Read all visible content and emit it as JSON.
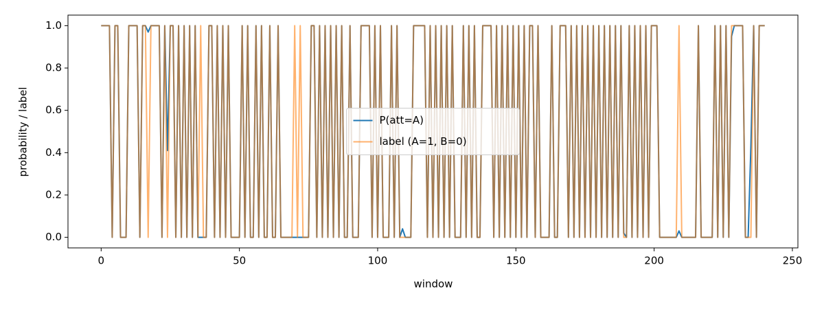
{
  "chart_data": {
    "type": "line",
    "xlabel": "window",
    "ylabel": "probability / label",
    "x": [
      0,
      1,
      2,
      3,
      4,
      5,
      6,
      7,
      8,
      9,
      10,
      11,
      12,
      13,
      14,
      15,
      16,
      17,
      18,
      19,
      20,
      21,
      22,
      23,
      24,
      25,
      26,
      27,
      28,
      29,
      30,
      31,
      32,
      33,
      34,
      35,
      36,
      37,
      38,
      39,
      40,
      41,
      42,
      43,
      44,
      45,
      46,
      47,
      48,
      49,
      50,
      51,
      52,
      53,
      54,
      55,
      56,
      57,
      58,
      59,
      60,
      61,
      62,
      63,
      64,
      65,
      66,
      67,
      68,
      69,
      70,
      71,
      72,
      73,
      74,
      75,
      76,
      77,
      78,
      79,
      80,
      81,
      82,
      83,
      84,
      85,
      86,
      87,
      88,
      89,
      90,
      91,
      92,
      93,
      94,
      95,
      96,
      97,
      98,
      99,
      100,
      101,
      102,
      103,
      104,
      105,
      106,
      107,
      108,
      109,
      110,
      111,
      112,
      113,
      114,
      115,
      116,
      117,
      118,
      119,
      120,
      121,
      122,
      123,
      124,
      125,
      126,
      127,
      128,
      129,
      130,
      131,
      132,
      133,
      134,
      135,
      136,
      137,
      138,
      139,
      140,
      141,
      142,
      143,
      144,
      145,
      146,
      147,
      148,
      149,
      150,
      151,
      152,
      153,
      154,
      155,
      156,
      157,
      158,
      159,
      160,
      161,
      162,
      163,
      164,
      165,
      166,
      167,
      168,
      169,
      170,
      171,
      172,
      173,
      174,
      175,
      176,
      177,
      178,
      179,
      180,
      181,
      182,
      183,
      184,
      185,
      186,
      187,
      188,
      189,
      190,
      191,
      192,
      193,
      194,
      195,
      196,
      197,
      198,
      199,
      200,
      201,
      202,
      203,
      204,
      205,
      206,
      207,
      208,
      209,
      210,
      211,
      212,
      213,
      214,
      215,
      216,
      217,
      218,
      219,
      220,
      221,
      222,
      223,
      224,
      225,
      226,
      227,
      228,
      229,
      230,
      231,
      232,
      233,
      234,
      235,
      236,
      237,
      238,
      239,
      240
    ],
    "series": [
      {
        "name": "P(att=A)",
        "color": "#1f77b4",
        "opacity": 1,
        "values": [
          1,
          1,
          1,
          1,
          0,
          1,
          1,
          0,
          0,
          0,
          1,
          1,
          1,
          1,
          0,
          1,
          1,
          0.97,
          1,
          1,
          1,
          1,
          0,
          1,
          0.41,
          1,
          1,
          0,
          1,
          0,
          1,
          0,
          1,
          0,
          1,
          0,
          0,
          0,
          0,
          1,
          1,
          0,
          1,
          0,
          1,
          0,
          1,
          0,
          0,
          0,
          0,
          1,
          0,
          1,
          0,
          0,
          1,
          0,
          1,
          0,
          0,
          1,
          0,
          0,
          1,
          0,
          0,
          0,
          0,
          0,
          0,
          0,
          0,
          0,
          0,
          0,
          1,
          1,
          0,
          1,
          0,
          1,
          0,
          1,
          0,
          1,
          0,
          1,
          0,
          0,
          1,
          0,
          0,
          0,
          1,
          1,
          1,
          1,
          0,
          1,
          0,
          1,
          0,
          0,
          0,
          1,
          0,
          1,
          0,
          0.04,
          0,
          0,
          0,
          1,
          1,
          1,
          1,
          1,
          0,
          1,
          0,
          1,
          0,
          1,
          0,
          1,
          0,
          1,
          0,
          0,
          0,
          1,
          0,
          1,
          0,
          1,
          0,
          0,
          1,
          1,
          1,
          1,
          0,
          1,
          0,
          1,
          0,
          1,
          0,
          1,
          0,
          1,
          0,
          1,
          0,
          1,
          1,
          0,
          1,
          0,
          0,
          0,
          0,
          1,
          0,
          0,
          1,
          1,
          1,
          0,
          1,
          0,
          1,
          0,
          1,
          0,
          1,
          0,
          1,
          0,
          1,
          0,
          1,
          0,
          1,
          0,
          1,
          0,
          1,
          0.02,
          0,
          1,
          0,
          1,
          0,
          1,
          0,
          1,
          0,
          1,
          1,
          1,
          0,
          0,
          0,
          0,
          0,
          0,
          0,
          0.03,
          0,
          0,
          0,
          0,
          0,
          0,
          1,
          0,
          0,
          0,
          0,
          0,
          1,
          0,
          1,
          0,
          1,
          0,
          0.95,
          1,
          1,
          1,
          1,
          0,
          0,
          0.43,
          1,
          0,
          1,
          1,
          1
        ]
      },
      {
        "name": "label (A=1, B=0)",
        "color": "#ff7f0e",
        "opacity": 0.6,
        "values": [
          1,
          1,
          1,
          1,
          0,
          1,
          1,
          0,
          0,
          0,
          1,
          1,
          1,
          1,
          0,
          1,
          1,
          0,
          1,
          1,
          1,
          1,
          0,
          1,
          0,
          1,
          1,
          0,
          1,
          0,
          1,
          0,
          1,
          0,
          1,
          0,
          1,
          0,
          0,
          1,
          1,
          0,
          1,
          0,
          1,
          0,
          1,
          0,
          0,
          0,
          0,
          1,
          0,
          1,
          0,
          0,
          1,
          0,
          1,
          0,
          0,
          1,
          0,
          0,
          1,
          0,
          0,
          0,
          0,
          0,
          1,
          0,
          1,
          0,
          0,
          0,
          1,
          1,
          0,
          1,
          0,
          1,
          0,
          1,
          0,
          1,
          0,
          1,
          0,
          0,
          1,
          0,
          0,
          0,
          1,
          1,
          1,
          1,
          0,
          1,
          0,
          1,
          0,
          0,
          0,
          1,
          0,
          1,
          0,
          0,
          0,
          0,
          0,
          1,
          1,
          1,
          1,
          1,
          0,
          1,
          0,
          1,
          0,
          1,
          0,
          1,
          0,
          1,
          0,
          0,
          0,
          1,
          0,
          1,
          0,
          1,
          0,
          0,
          1,
          1,
          1,
          1,
          0,
          1,
          0,
          1,
          0,
          1,
          0,
          1,
          0,
          1,
          0,
          1,
          0,
          1,
          1,
          0,
          1,
          0,
          0,
          0,
          0,
          1,
          0,
          0,
          1,
          1,
          1,
          0,
          1,
          0,
          1,
          0,
          1,
          0,
          1,
          0,
          1,
          0,
          1,
          0,
          1,
          0,
          1,
          0,
          1,
          0,
          1,
          0,
          0,
          1,
          0,
          1,
          0,
          1,
          0,
          1,
          0,
          1,
          1,
          1,
          0,
          0,
          0,
          0,
          0,
          0,
          0,
          1,
          0,
          0,
          0,
          0,
          0,
          0,
          1,
          0,
          0,
          0,
          0,
          0,
          1,
          0,
          1,
          0,
          1,
          0,
          1,
          1,
          1,
          1,
          1,
          0,
          0,
          0,
          1,
          0,
          1,
          1,
          1
        ]
      }
    ],
    "xlim": [
      -12,
      252
    ],
    "xticks": [
      0,
      50,
      100,
      150,
      200,
      250
    ],
    "ylim": [
      -0.05,
      1.05
    ],
    "yticks": [
      {
        "value": 0,
        "label": "0.0"
      },
      {
        "value": 0.2,
        "label": "0.2"
      },
      {
        "value": 0.4,
        "label": "0.4"
      },
      {
        "value": 0.6,
        "label": "0.6"
      },
      {
        "value": 0.8,
        "label": "0.8"
      },
      {
        "value": 1,
        "label": "1.0"
      }
    ],
    "legend": "center"
  }
}
